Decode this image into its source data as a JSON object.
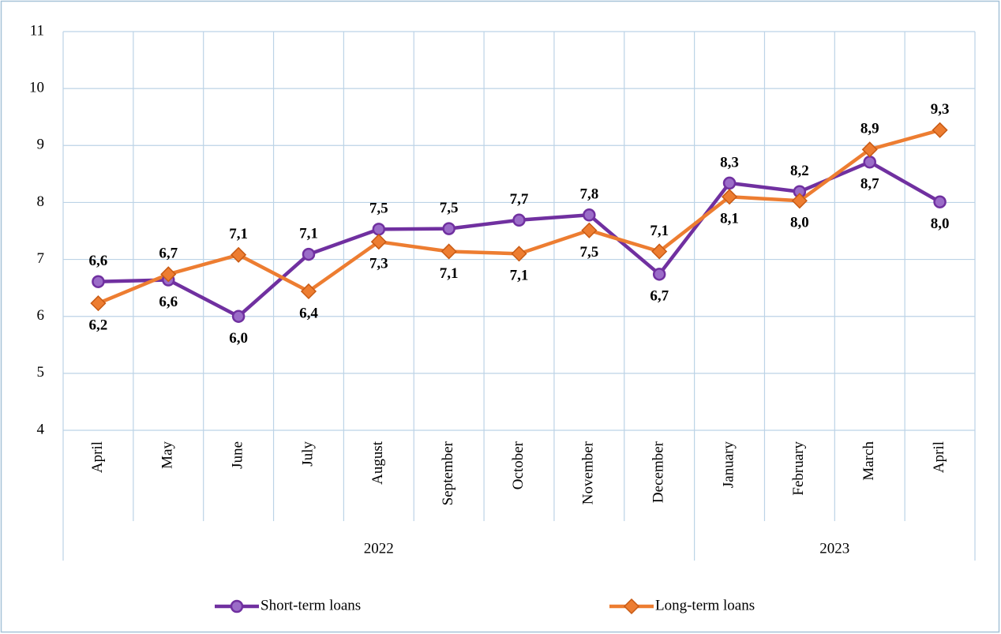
{
  "chart_data": {
    "type": "line",
    "categories": [
      "April",
      "May",
      "June",
      "July",
      "August",
      "September",
      "October",
      "November",
      "December",
      "January",
      "February",
      "March",
      "April"
    ],
    "groups": [
      {
        "name": "2022",
        "span": 9
      },
      {
        "name": "2023",
        "span": 4
      }
    ],
    "ylim": [
      4,
      11
    ],
    "yticks": [
      4,
      5,
      6,
      7,
      8,
      9,
      10,
      11
    ],
    "grid": true,
    "legend": "bottom",
    "series": [
      {
        "name": "Short-term loans",
        "color": "#7030a0",
        "marker": "circle",
        "label_color": "#5b2a86",
        "values": [
          6.61,
          6.64,
          6.0,
          7.09,
          7.53,
          7.54,
          7.69,
          7.78,
          6.74,
          8.34,
          8.19,
          8.71,
          8.01
        ],
        "value_labels": [
          "6,6",
          "6,6",
          "6,0",
          "7,1",
          "7,5",
          "7,5",
          "7,7",
          "7,8",
          "6,7",
          "8,3",
          "8,2",
          "8,7",
          "8,0"
        ]
      },
      {
        "name": "Long-term loans",
        "color": "#ed7d31",
        "marker": "diamond",
        "label_color": "#984807",
        "values": [
          6.23,
          6.74,
          7.08,
          6.44,
          7.31,
          7.14,
          7.1,
          7.51,
          7.14,
          8.1,
          8.03,
          8.93,
          9.27
        ],
        "value_labels": [
          "6,2",
          "6,7",
          "7,1",
          "6,4",
          "7,3",
          "7,1",
          "7,1",
          "7,5",
          "7,1",
          "8,1",
          "8,0",
          "8,9",
          "9,3"
        ]
      }
    ]
  }
}
